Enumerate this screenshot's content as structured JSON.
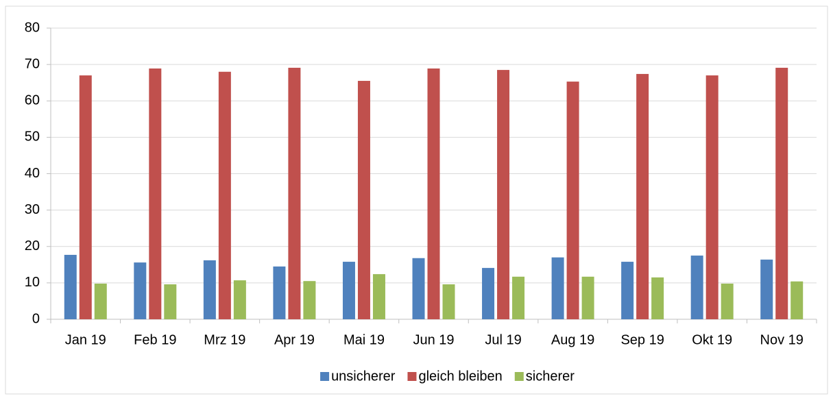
{
  "chart_data": {
    "type": "bar",
    "categories": [
      "Jan 19",
      "Feb 19",
      "Mrz 19",
      "Apr 19",
      "Mai 19",
      "Jun 19",
      "Jul 19",
      "Aug 19",
      "Sep 19",
      "Okt 19",
      "Nov 19"
    ],
    "series": [
      {
        "name": "unsicherer",
        "color": "#4f81bd",
        "values": [
          17.7,
          15.6,
          16.2,
          14.5,
          15.8,
          16.8,
          14.1,
          17.0,
          15.8,
          17.5,
          16.4
        ]
      },
      {
        "name": "gleich bleiben",
        "color": "#c0504d",
        "values": [
          67.0,
          68.9,
          68.0,
          69.1,
          65.5,
          68.9,
          68.5,
          65.3,
          67.4,
          67.0,
          69.1
        ]
      },
      {
        "name": "sicherer",
        "color": "#9bbb59",
        "values": [
          9.8,
          9.6,
          10.7,
          10.5,
          12.4,
          9.6,
          11.7,
          11.7,
          11.5,
          9.8,
          10.4
        ]
      }
    ],
    "ylim": [
      0,
      80
    ],
    "yticks": [
      0,
      10,
      20,
      30,
      40,
      50,
      60,
      70,
      80
    ],
    "grid": true,
    "legend": "bottom"
  }
}
